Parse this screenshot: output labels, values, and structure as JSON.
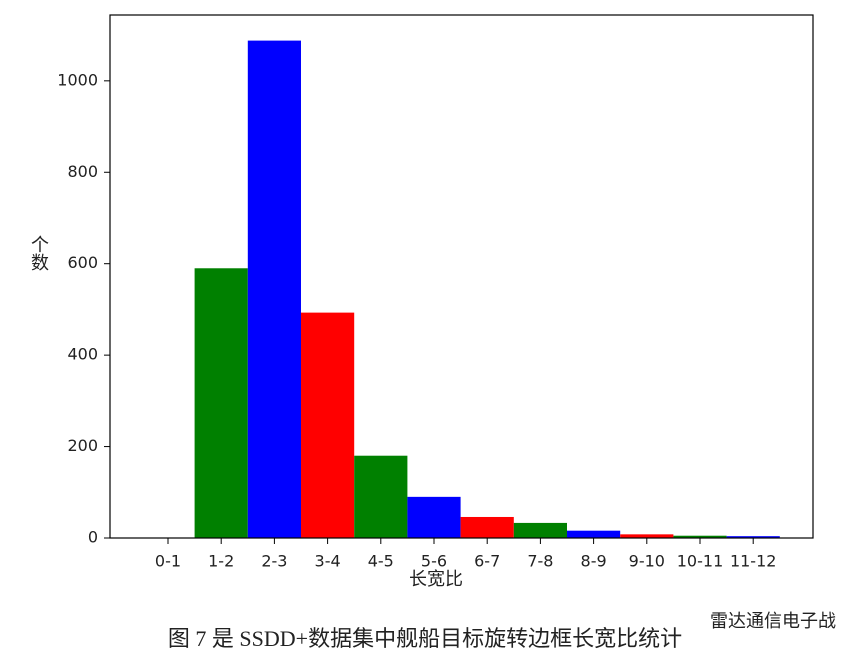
{
  "chart_data": {
    "type": "bar",
    "ylabel": "个数",
    "xlabel": "长宽比",
    "categories": [
      "0-1",
      "1-2",
      "2-3",
      "3-4",
      "4-5",
      "5-6",
      "6-7",
      "7-8",
      "8-9",
      "9-10",
      "10-11",
      "11-12"
    ],
    "values": [
      0,
      590,
      1088,
      493,
      180,
      90,
      46,
      33,
      16,
      8,
      5,
      4
    ],
    "colors": [
      "#ff0000",
      "#008000",
      "#0000ff",
      "#ff0000",
      "#008000",
      "#0000ff",
      "#ff0000",
      "#008000",
      "#0000ff",
      "#ff0000",
      "#008000",
      "#0000ff"
    ],
    "ylim": [
      0,
      1144
    ],
    "yticks": [
      0,
      200,
      400,
      600,
      800,
      1000
    ],
    "grid": false
  },
  "caption": "图 7 是 SSDD+数据集中舰船目标旋转边框长宽比统计",
  "watermark": "雷达通信电子战"
}
